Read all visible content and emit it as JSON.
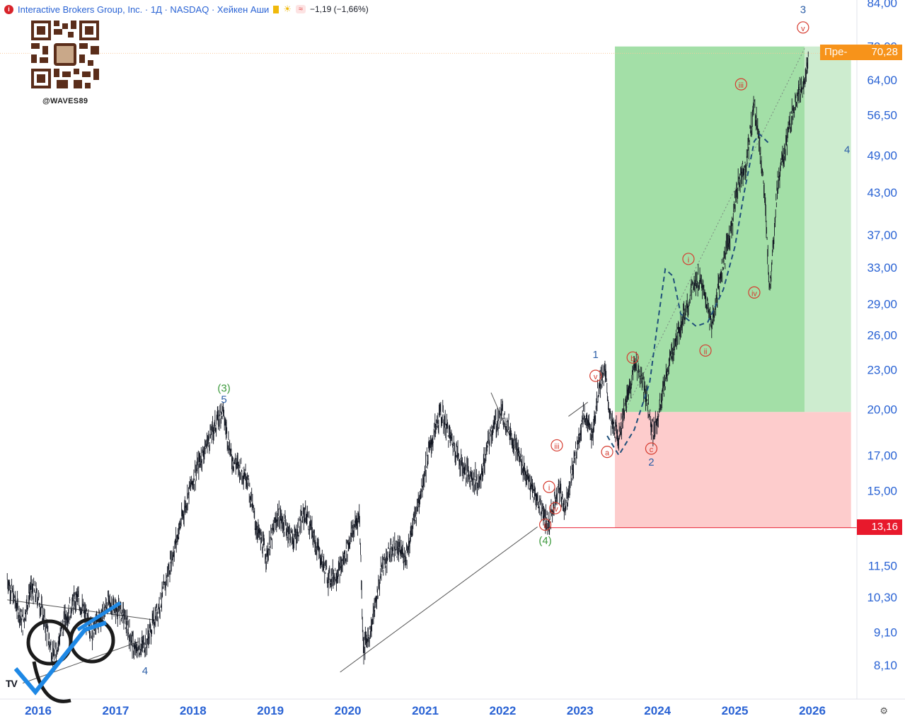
{
  "header": {
    "title": "Interactive Brokers Group, Inc. · 1Д · NASDAQ · Хейкен Аши",
    "change": "−1,19 (−1,66%)",
    "chip": "≈"
  },
  "watermark": {
    "handle": "@WAVES89",
    "logo_text": "89",
    "tv_text": "TV"
  },
  "price_tags": {
    "current_label": "Пре-",
    "current_value": "70,28",
    "stop_value": "13,16"
  },
  "colors": {
    "profit_zone": "#a3dfa7",
    "profit_zone_ext": "#cdeccf",
    "loss_zone": "#fdcccc",
    "wave_red": "#d63b2f",
    "wave_blue": "#2b5ea7",
    "wave_green": "#3d9a3d",
    "axis_text": "#2a63d4",
    "candles": "#131722",
    "projection": "#1f4f7a"
  },
  "chart_data": {
    "type": "candlestick",
    "scale": "log",
    "x_axis": {
      "labels": [
        "2016",
        "2017",
        "2018",
        "2019",
        "2020",
        "2021",
        "2022",
        "2023",
        "2024",
        "2025",
        "2026"
      ]
    },
    "y_axis": {
      "labels": [
        "84,00",
        "72,00",
        "64,00",
        "56,50",
        "49,00",
        "43,00",
        "37,00",
        "33,00",
        "29,00",
        "26,00",
        "23,00",
        "20,00",
        "17,00",
        "15,00",
        "13,16",
        "11,50",
        "10,30",
        "9,10",
        "8,10"
      ],
      "range": [
        7.4,
        84
      ]
    },
    "price_path": [
      [
        2015.6,
        11.0
      ],
      [
        2015.8,
        9.4
      ],
      [
        2015.9,
        10.6
      ],
      [
        2016.0,
        10.3
      ],
      [
        2016.2,
        8.3
      ],
      [
        2016.35,
        9.6
      ],
      [
        2016.5,
        10.3
      ],
      [
        2016.7,
        9.1
      ],
      [
        2016.9,
        10.1
      ],
      [
        2017.1,
        9.7
      ],
      [
        2017.25,
        8.5
      ],
      [
        2017.4,
        8.8
      ],
      [
        2017.6,
        10.3
      ],
      [
        2017.8,
        12.8
      ],
      [
        2017.95,
        15.0
      ],
      [
        2018.1,
        16.8
      ],
      [
        2018.25,
        18.5
      ],
      [
        2018.38,
        20.0
      ],
      [
        2018.5,
        16.8
      ],
      [
        2018.7,
        15.8
      ],
      [
        2018.8,
        13.4
      ],
      [
        2018.95,
        11.9
      ],
      [
        2019.1,
        13.8
      ],
      [
        2019.3,
        12.6
      ],
      [
        2019.45,
        13.9
      ],
      [
        2019.6,
        12.3
      ],
      [
        2019.75,
        11.0
      ],
      [
        2019.9,
        11.3
      ],
      [
        2020.05,
        12.9
      ],
      [
        2020.15,
        13.8
      ],
      [
        2020.2,
        8.6
      ],
      [
        2020.3,
        9.2
      ],
      [
        2020.45,
        11.6
      ],
      [
        2020.6,
        12.3
      ],
      [
        2020.75,
        11.9
      ],
      [
        2020.9,
        14.2
      ],
      [
        2021.05,
        17.3
      ],
      [
        2021.2,
        19.8
      ],
      [
        2021.35,
        17.8
      ],
      [
        2021.5,
        16.2
      ],
      [
        2021.7,
        15.4
      ],
      [
        2021.85,
        18.5
      ],
      [
        2022.0,
        19.8
      ],
      [
        2022.15,
        17.8
      ],
      [
        2022.35,
        15.3
      ],
      [
        2022.5,
        14.1
      ],
      [
        2022.6,
        13.3
      ],
      [
        2022.72,
        15.3
      ],
      [
        2022.8,
        14.1
      ],
      [
        2022.95,
        17.2
      ],
      [
        2023.05,
        19.8
      ],
      [
        2023.15,
        18.1
      ],
      [
        2023.25,
        22.0
      ],
      [
        2023.32,
        22.8
      ],
      [
        2023.4,
        19.0
      ],
      [
        2023.5,
        18.2
      ],
      [
        2023.6,
        20.6
      ],
      [
        2023.72,
        23.8
      ],
      [
        2023.85,
        21.0
      ],
      [
        2023.95,
        18.4
      ],
      [
        2024.05,
        20.6
      ],
      [
        2024.15,
        23.5
      ],
      [
        2024.3,
        27.0
      ],
      [
        2024.45,
        30.5
      ],
      [
        2024.55,
        31.8
      ],
      [
        2024.62,
        29.5
      ],
      [
        2024.7,
        26.8
      ],
      [
        2024.8,
        31.5
      ],
      [
        2024.95,
        37.5
      ],
      [
        2025.05,
        45.0
      ],
      [
        2025.15,
        48.0
      ],
      [
        2025.25,
        59.0
      ],
      [
        2025.32,
        51.0
      ],
      [
        2025.38,
        43.0
      ],
      [
        2025.45,
        30.5
      ],
      [
        2025.55,
        44.5
      ],
      [
        2025.65,
        50.0
      ],
      [
        2025.75,
        57.5
      ],
      [
        2025.82,
        62.0
      ],
      [
        2025.88,
        61.0
      ],
      [
        2025.95,
        70.3
      ]
    ],
    "waves": [
      {
        "label": "(3)",
        "x": 2018.4,
        "y": 20.0,
        "color": "green",
        "pos": "above2"
      },
      {
        "label": "5",
        "x": 2018.4,
        "y": 20.0,
        "color": "blue",
        "pos": "above"
      },
      {
        "label": "4",
        "x": 2017.38,
        "y": 8.3,
        "color": "blue",
        "pos": "below"
      },
      {
        "label": "(4)",
        "x": 2022.55,
        "y": 13.16,
        "color": "green",
        "pos": "below"
      },
      {
        "label": "ii",
        "x": 2022.55,
        "y": 13.3,
        "color": "red",
        "circle": true
      },
      {
        "label": "iv",
        "x": 2022.68,
        "y": 14.1,
        "color": "red",
        "circle": true
      },
      {
        "label": "i",
        "x": 2022.6,
        "y": 15.2,
        "color": "red",
        "circle": true
      },
      {
        "label": "iii",
        "x": 2022.7,
        "y": 17.6,
        "color": "red",
        "circle": true
      },
      {
        "label": "v",
        "x": 2023.2,
        "y": 22.5,
        "color": "red",
        "circle": true
      },
      {
        "label": "1",
        "x": 2023.2,
        "y": 22.5,
        "color": "blue",
        "pos": "above2"
      },
      {
        "label": "a",
        "x": 2023.35,
        "y": 17.2,
        "color": "red",
        "circle": true
      },
      {
        "label": "b",
        "x": 2023.68,
        "y": 24.0,
        "color": "red",
        "circle": true
      },
      {
        "label": "c",
        "x": 2023.92,
        "y": 17.4,
        "color": "red",
        "circle": true
      },
      {
        "label": "2",
        "x": 2023.92,
        "y": 16.6,
        "color": "blue",
        "pos": "none"
      },
      {
        "label": "i",
        "x": 2024.4,
        "y": 34.0,
        "color": "red",
        "circle": true
      },
      {
        "label": "ii",
        "x": 2024.62,
        "y": 24.6,
        "color": "red",
        "circle": true
      },
      {
        "label": "iii",
        "x": 2025.08,
        "y": 63.0,
        "color": "red",
        "circle": true
      },
      {
        "label": "iv",
        "x": 2025.25,
        "y": 30.2,
        "color": "red",
        "circle": true
      },
      {
        "label": "v",
        "x": 2025.88,
        "y": 77.0,
        "color": "red",
        "circle": true
      },
      {
        "label": "3",
        "x": 2025.88,
        "y": 82.0,
        "color": "blue",
        "pos": "none"
      },
      {
        "label": "4",
        "x": 2026.45,
        "y": 50.0,
        "color": "blue",
        "pos": "none"
      }
    ],
    "trendlines": [
      {
        "from": [
          2015.6,
          10.2
        ],
        "to": [
          2017.5,
          9.5
        ]
      },
      {
        "from": [
          2015.8,
          7.6
        ],
        "to": [
          2017.3,
          8.8
        ]
      },
      {
        "from": [
          2019.9,
          7.9
        ],
        "to": [
          2022.45,
          13.2
        ]
      },
      {
        "from": [
          2021.85,
          21.2
        ],
        "to": [
          2022.4,
          15.0
        ]
      },
      {
        "from": [
          2022.85,
          19.5
        ],
        "to": [
          2023.1,
          20.5
        ]
      },
      {
        "from": [
          2023.5,
          19.0
        ],
        "to": [
          2025.9,
          71.5
        ]
      }
    ],
    "projection_path": [
      [
        2023.35,
        18.2
      ],
      [
        2023.5,
        17.0
      ],
      [
        2023.7,
        18.6
      ],
      [
        2023.9,
        22.0
      ],
      [
        2024.0,
        27.0
      ],
      [
        2024.1,
        32.8
      ],
      [
        2024.2,
        32.0
      ],
      [
        2024.3,
        28.0
      ],
      [
        2024.5,
        26.8
      ],
      [
        2024.65,
        27.2
      ],
      [
        2024.85,
        30.5
      ],
      [
        2025.0,
        35.5
      ],
      [
        2025.12,
        43.0
      ],
      [
        2025.25,
        51.5
      ],
      [
        2025.32,
        52.8
      ],
      [
        2025.45,
        51.0
      ]
    ],
    "position": {
      "entry": 19.8,
      "target": 72.0,
      "stop": 13.16,
      "start_x": 2023.45,
      "end_x": 2026.5,
      "active_end_x": 2025.9
    }
  }
}
